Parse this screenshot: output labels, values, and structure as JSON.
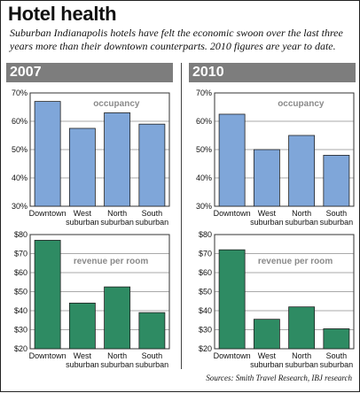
{
  "title": "Hotel health",
  "subtitle": "Suburban Indianapolis hotels have felt the economic swoon over the last three years more than their downtown counterparts. 2010 figures are year to date.",
  "source": "Sources: Smith Travel Research, IBJ research",
  "panels": [
    {
      "year": "2007"
    },
    {
      "year": "2010"
    }
  ],
  "colors": {
    "occupancy": "#7fa6d9",
    "revenue": "#2e8b63",
    "header": "#7d7d7d"
  },
  "chart_data": [
    {
      "type": "bar",
      "panel": "2007",
      "metric": "occupancy",
      "title": "occupancy",
      "categories": [
        "Downtown",
        "West suburban",
        "North suburban",
        "South suburban"
      ],
      "values": [
        67,
        57.5,
        63,
        59
      ],
      "ylim": [
        30,
        70
      ],
      "yticks": [
        "70%",
        "60%",
        "50%",
        "40%",
        "30%"
      ]
    },
    {
      "type": "bar",
      "panel": "2010",
      "metric": "occupancy",
      "title": "occupancy",
      "categories": [
        "Downtown",
        "West suburban",
        "North suburban",
        "South suburban"
      ],
      "values": [
        62.5,
        50,
        55,
        48
      ],
      "ylim": [
        30,
        70
      ],
      "yticks": [
        "70%",
        "60%",
        "50%",
        "40%",
        "30%"
      ]
    },
    {
      "type": "bar",
      "panel": "2007",
      "metric": "revenue",
      "title": "revenue per room",
      "categories": [
        "Downtown",
        "West suburban",
        "North suburban",
        "South suburban"
      ],
      "values": [
        77,
        44,
        52.5,
        39
      ],
      "ylim": [
        20,
        80
      ],
      "yticks": [
        "$80",
        "$70",
        "$60",
        "$50",
        "$40",
        "$30",
        "$20"
      ]
    },
    {
      "type": "bar",
      "panel": "2010",
      "metric": "revenue",
      "title": "revenue per room",
      "categories": [
        "Downtown",
        "West suburban",
        "North suburban",
        "South suburban"
      ],
      "values": [
        72,
        35.5,
        42,
        30.5
      ],
      "ylim": [
        20,
        80
      ],
      "yticks": [
        "$80",
        "$70",
        "$60",
        "$50",
        "$40",
        "$30",
        "$20"
      ]
    }
  ]
}
